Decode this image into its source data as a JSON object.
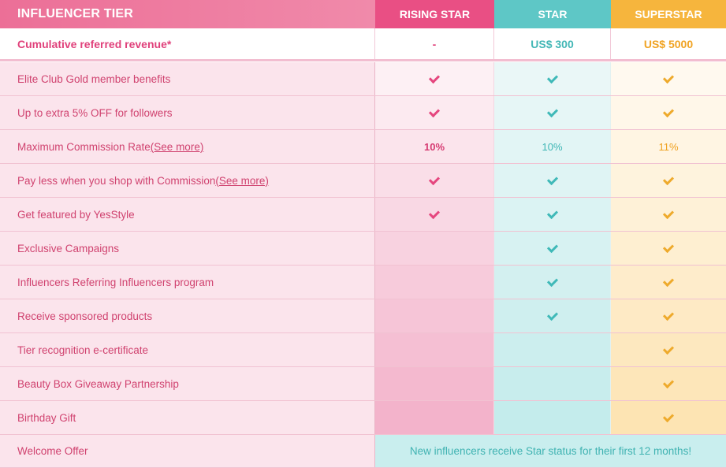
{
  "header": {
    "tier_label": "INFLUENCER TIER",
    "rising_star": "RISING STAR",
    "star": "STAR",
    "superstar": "SUPERSTAR"
  },
  "revenue": {
    "label": "Cumulative referred revenue*",
    "rising_star": "-",
    "star": "US$ 300",
    "superstar": "US$ 5000"
  },
  "colors": {
    "rising_star": "#e94f84",
    "star": "#5ec7c6",
    "superstar": "#f6b53d",
    "label_text": "#d0426f"
  },
  "rows": [
    {
      "label": "Elite Club Gold member benefits",
      "see_more": "",
      "rising_star": "check",
      "star": "check",
      "superstar": "check"
    },
    {
      "label": "Up to extra 5% OFF for followers",
      "see_more": "",
      "rising_star": "check",
      "star": "check",
      "superstar": "check"
    },
    {
      "label": "Maximum Commission Rate ",
      "see_more": "(See more)",
      "rising_star": "10%",
      "star": "10%",
      "superstar": "11%"
    },
    {
      "label": "Pay less when you shop with Commission ",
      "see_more": "(See more)",
      "rising_star": "check",
      "star": "check",
      "superstar": "check"
    },
    {
      "label": "Get featured by YesStyle",
      "see_more": "",
      "rising_star": "check",
      "star": "check",
      "superstar": "check"
    },
    {
      "label": "Exclusive Campaigns",
      "see_more": "",
      "rising_star": "",
      "star": "check",
      "superstar": "check"
    },
    {
      "label": "Influencers Referring Influencers program",
      "see_more": "",
      "rising_star": "",
      "star": "check",
      "superstar": "check"
    },
    {
      "label": "Receive sponsored products",
      "see_more": "",
      "rising_star": "",
      "star": "check",
      "superstar": "check"
    },
    {
      "label": "Tier recognition e-certificate",
      "see_more": "",
      "rising_star": "",
      "star": "",
      "superstar": "check"
    },
    {
      "label": "Beauty Box Giveaway Partnership",
      "see_more": "",
      "rising_star": "",
      "star": "",
      "superstar": "check"
    },
    {
      "label": "Birthday Gift",
      "see_more": "",
      "rising_star": "",
      "star": "",
      "superstar": "check"
    }
  ],
  "welcome": {
    "label": "Welcome Offer",
    "note": "New influencers receive Star status for their first 12 months!"
  }
}
